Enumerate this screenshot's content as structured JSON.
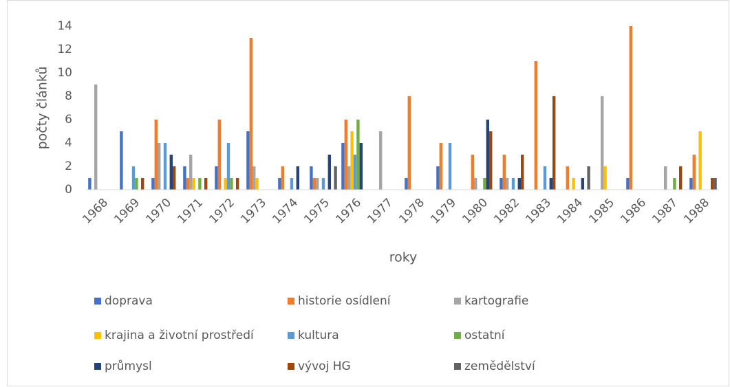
{
  "chart_data": {
    "type": "bar",
    "x_label": "roky",
    "y_label": "počty článků",
    "categories": [
      "1968",
      "1969",
      "1970",
      "1971",
      "1972",
      "1973",
      "1974",
      "1975",
      "1976",
      "1977",
      "1978",
      "1979",
      "1980",
      "1982",
      "1983",
      "1984",
      "1985",
      "1986",
      "1987",
      "1988"
    ],
    "series": [
      {
        "name": "doprava",
        "color": "#4472c4",
        "values": [
          1,
          5,
          1,
          2,
          2,
          5,
          1,
          2,
          4,
          0,
          1,
          2,
          0,
          1,
          0,
          0,
          0,
          1,
          0,
          1
        ]
      },
      {
        "name": "historie osídlení",
        "color": "#ed7d31",
        "values": [
          0,
          0,
          6,
          1,
          6,
          13,
          2,
          1,
          6,
          0,
          8,
          4,
          3,
          3,
          11,
          2,
          0,
          14,
          0,
          3
        ]
      },
      {
        "name": "kartografie",
        "color": "#a5a5a5",
        "values": [
          9,
          0,
          4,
          3,
          0,
          2,
          0,
          1,
          2,
          5,
          0,
          0,
          1,
          1,
          0,
          0,
          8,
          0,
          2,
          0
        ]
      },
      {
        "name": "krajina a životní prostředí",
        "color": "#ffc000",
        "values": [
          0,
          0,
          0,
          1,
          1,
          1,
          0,
          0,
          5,
          0,
          0,
          0,
          0,
          0,
          0,
          1,
          2,
          0,
          0,
          5
        ]
      },
      {
        "name": "kultura",
        "color": "#5b9bd5",
        "values": [
          0,
          2,
          4,
          0,
          4,
          0,
          1,
          1,
          3,
          0,
          0,
          4,
          0,
          1,
          2,
          0,
          0,
          0,
          0,
          0
        ]
      },
      {
        "name": "ostatní",
        "color": "#70ad47",
        "values": [
          0,
          1,
          0,
          1,
          1,
          0,
          0,
          0,
          6,
          0,
          0,
          0,
          1,
          0,
          0,
          0,
          0,
          0,
          1,
          0
        ]
      },
      {
        "name": "průmysl",
        "color": "#264478",
        "values": [
          0,
          0,
          3,
          0,
          0,
          0,
          2,
          3,
          4,
          0,
          0,
          0,
          6,
          1,
          1,
          1,
          0,
          0,
          0,
          0
        ]
      },
      {
        "name": "vývoj HG",
        "color": "#9e480e",
        "values": [
          0,
          1,
          2,
          1,
          1,
          0,
          0,
          0,
          0,
          0,
          0,
          0,
          5,
          3,
          8,
          0,
          0,
          0,
          2,
          1
        ]
      },
      {
        "name": "zemědělství",
        "color": "#636363",
        "values": [
          0,
          0,
          0,
          0,
          0,
          0,
          0,
          2,
          0,
          0,
          0,
          0,
          0,
          0,
          0,
          2,
          0,
          0,
          0,
          1
        ]
      }
    ],
    "ylim": [
      0,
      14
    ],
    "yticks": [
      0,
      2,
      4,
      6,
      8,
      10,
      12,
      14
    ],
    "grid": false
  }
}
